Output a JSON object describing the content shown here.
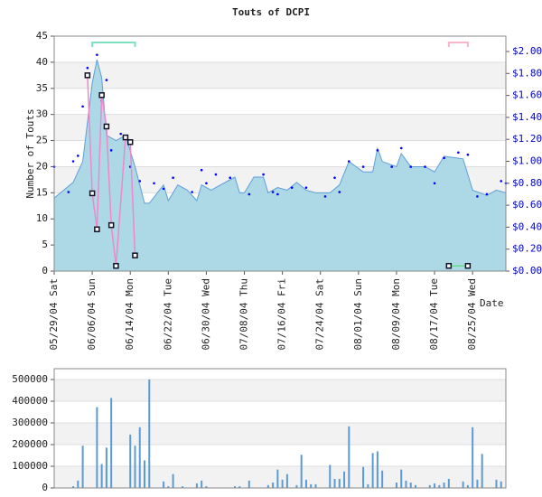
{
  "chart_data": [
    {
      "type": "area",
      "title": "Touts of DCPI",
      "y_label": "Number of Touts",
      "x_label": "Date",
      "xlim": [
        "2004-05-29",
        "2004-09-01"
      ],
      "xticks": [
        {
          "value": "2004-05-29",
          "label": "05/29/04 Sat"
        },
        {
          "value": "2004-06-06",
          "label": "06/06/04 Sun"
        },
        {
          "value": "2004-06-14",
          "label": "06/14/04 Mon"
        },
        {
          "value": "2004-06-22",
          "label": "06/22/04 Tue"
        },
        {
          "value": "2004-06-30",
          "label": "06/30/04 Wed"
        },
        {
          "value": "2004-07-08",
          "label": "07/08/04 Thu"
        },
        {
          "value": "2004-07-16",
          "label": "07/16/04 Fri"
        },
        {
          "value": "2004-07-24",
          "label": "07/24/04 Sat"
        },
        {
          "value": "2004-08-01",
          "label": "08/01/04 Sun"
        },
        {
          "value": "2004-08-09",
          "label": "08/09/04 Mon"
        },
        {
          "value": "2004-08-17",
          "label": "08/17/04 Tue"
        },
        {
          "value": "2004-08-25",
          "label": "08/25/04 Wed"
        }
      ],
      "ylim": [
        0,
        45
      ],
      "yticks": [
        0,
        5,
        10,
        15,
        20,
        25,
        30,
        35,
        40,
        45
      ],
      "y2lim": [
        0,
        2.14
      ],
      "y2ticks": [
        {
          "value": 0,
          "label": "$0.00"
        },
        {
          "value": 0.2,
          "label": "$0.20"
        },
        {
          "value": 0.4,
          "label": "$0.40"
        },
        {
          "value": 0.6,
          "label": "$0.60"
        },
        {
          "value": 0.8,
          "label": "$0.80"
        },
        {
          "value": 1,
          "label": "$1.00"
        },
        {
          "value": 1.2,
          "label": "$1.20"
        },
        {
          "value": 1.4,
          "label": "$1.40"
        },
        {
          "value": 1.6,
          "label": "$1.60"
        },
        {
          "value": 1.8,
          "label": "$1.80"
        },
        {
          "value": 2,
          "label": "$2.00"
        }
      ],
      "grid": true,
      "ranges": [
        {
          "x": [
            "2004-06-06",
            "2004-06-15"
          ],
          "color": "#7fe0c0"
        },
        {
          "x": [
            "2004-08-20",
            "2004-08-24"
          ],
          "color": "#f4b6c8"
        }
      ],
      "series": [
        {
          "type": "area",
          "color": "#add8e6",
          "x": [
            "2004-05-29",
            "2004-06-02",
            "2004-06-04",
            "2004-06-06",
            "2004-06-07",
            "2004-06-08",
            "2004-06-09",
            "2004-06-11",
            "2004-06-13",
            "2004-06-15",
            "2004-06-17",
            "2004-06-18",
            "2004-06-21",
            "2004-06-22",
            "2004-06-24",
            "2004-06-26",
            "2004-06-28",
            "2004-06-29",
            "2004-07-01",
            "2004-07-06",
            "2004-07-07",
            "2004-07-08",
            "2004-07-10",
            "2004-07-12",
            "2004-07-13",
            "2004-07-15",
            "2004-07-17",
            "2004-07-19",
            "2004-07-21",
            "2004-07-23",
            "2004-07-26",
            "2004-07-28",
            "2004-07-30",
            "2004-08-02",
            "2004-08-04",
            "2004-08-05",
            "2004-08-06",
            "2004-08-09",
            "2004-08-10",
            "2004-08-12",
            "2004-08-15",
            "2004-08-17",
            "2004-08-19",
            "2004-08-23",
            "2004-08-25",
            "2004-08-28",
            "2004-08-30",
            "2004-09-01"
          ],
          "values": [
            14,
            17,
            21,
            36,
            40.5,
            37,
            26,
            25,
            26,
            20,
            13,
            13,
            16.5,
            13.5,
            16.5,
            15.5,
            13.5,
            16.5,
            15.5,
            18,
            15,
            15,
            18,
            18,
            15,
            16,
            15.5,
            17,
            15.5,
            15,
            15,
            16.5,
            21,
            19,
            19,
            23.5,
            21,
            20,
            22.5,
            20,
            20,
            19,
            22,
            21.5,
            15.5,
            14.5,
            15.5,
            15
          ]
        },
        {
          "type": "scatter",
          "axis": "y2",
          "color": "#0000ff",
          "x": [
            "2004-05-29",
            "2004-06-01",
            "2004-06-02",
            "2004-06-03",
            "2004-06-04",
            "2004-06-05",
            "2004-06-07",
            "2004-06-08",
            "2004-06-09",
            "2004-06-10",
            "2004-06-12",
            "2004-06-14",
            "2004-06-16",
            "2004-06-19",
            "2004-06-21",
            "2004-06-23",
            "2004-06-27",
            "2004-06-29",
            "2004-06-30",
            "2004-07-02",
            "2004-07-05",
            "2004-07-09",
            "2004-07-12",
            "2004-07-14",
            "2004-07-15",
            "2004-07-18",
            "2004-07-21",
            "2004-07-25",
            "2004-07-27",
            "2004-07-28",
            "2004-07-30",
            "2004-08-02",
            "2004-08-05",
            "2004-08-08",
            "2004-08-10",
            "2004-08-12",
            "2004-08-15",
            "2004-08-17",
            "2004-08-19",
            "2004-08-22",
            "2004-08-24",
            "2004-08-26",
            "2004-08-28",
            "2004-08-31",
            "2004-09-01"
          ],
          "values": [
            0.95,
            0.72,
            1.0,
            1.05,
            1.5,
            1.85,
            1.97,
            1.55,
            1.74,
            1.1,
            1.25,
            0.95,
            0.82,
            0.8,
            0.75,
            0.85,
            0.72,
            0.92,
            0.8,
            0.88,
            0.85,
            0.7,
            0.88,
            0.72,
            0.7,
            0.76,
            0.76,
            0.68,
            0.85,
            0.72,
            1.0,
            0.95,
            1.1,
            0.95,
            1.12,
            0.95,
            0.95,
            0.8,
            1.03,
            1.08,
            1.06,
            0.68,
            0.7,
            0.82,
            0.8
          ]
        },
        {
          "type": "line",
          "color": "#ee88cc",
          "x": [
            "2004-06-05",
            "2004-06-06",
            "2004-06-07",
            "2004-06-08",
            "2004-06-09",
            "2004-06-10",
            "2004-06-11",
            "2004-06-13",
            "2004-06-14",
            "2004-06-15"
          ],
          "values": [
            37.5,
            14.9,
            8,
            33.7,
            27.7,
            8.8,
            1,
            25.6,
            24.7,
            3
          ]
        },
        {
          "type": "line",
          "color": "#66dd88",
          "x": [
            "2004-08-20",
            "2004-08-24"
          ],
          "values": [
            1,
            1
          ]
        }
      ]
    },
    {
      "type": "bar",
      "color": "#5b9bd5",
      "xlim": [
        "2004-05-29",
        "2004-09-01"
      ],
      "ylim": [
        0,
        550000
      ],
      "yticks": [
        0,
        100000,
        200000,
        300000,
        400000,
        500000
      ],
      "grid": true,
      "x": [
        "2004-06-02",
        "2004-06-03",
        "2004-06-04",
        "2004-06-07",
        "2004-06-08",
        "2004-06-09",
        "2004-06-10",
        "2004-06-14",
        "2004-06-15",
        "2004-06-16",
        "2004-06-17",
        "2004-06-18",
        "2004-06-21",
        "2004-06-22",
        "2004-06-23",
        "2004-06-25",
        "2004-06-28",
        "2004-06-29",
        "2004-06-30",
        "2004-07-06",
        "2004-07-07",
        "2004-07-09",
        "2004-07-13",
        "2004-07-14",
        "2004-07-15",
        "2004-07-16",
        "2004-07-17",
        "2004-07-19",
        "2004-07-20",
        "2004-07-21",
        "2004-07-22",
        "2004-07-23",
        "2004-07-26",
        "2004-07-27",
        "2004-07-28",
        "2004-07-29",
        "2004-07-30",
        "2004-08-02",
        "2004-08-03",
        "2004-08-04",
        "2004-08-05",
        "2004-08-06",
        "2004-08-09",
        "2004-08-10",
        "2004-08-11",
        "2004-08-12",
        "2004-08-13",
        "2004-08-16",
        "2004-08-17",
        "2004-08-18",
        "2004-08-19",
        "2004-08-20",
        "2004-08-23",
        "2004-08-24",
        "2004-08-25",
        "2004-08-26",
        "2004-08-27",
        "2004-08-30",
        "2004-08-31"
      ],
      "values": [
        8000,
        34000,
        195000,
        373000,
        110000,
        186000,
        415000,
        246000,
        195000,
        280000,
        127000,
        500000,
        30000,
        8000,
        64000,
        8000,
        21000,
        34000,
        8000,
        8000,
        8000,
        34000,
        13000,
        25000,
        85000,
        38000,
        64000,
        13000,
        153000,
        38000,
        17000,
        17000,
        106000,
        42000,
        42000,
        76000,
        284000,
        97000,
        17000,
        161000,
        169000,
        80000,
        25000,
        85000,
        34000,
        25000,
        13000,
        13000,
        21000,
        13000,
        25000,
        42000,
        30000,
        13000,
        280000,
        38000,
        157000,
        38000,
        30000
      ]
    }
  ]
}
